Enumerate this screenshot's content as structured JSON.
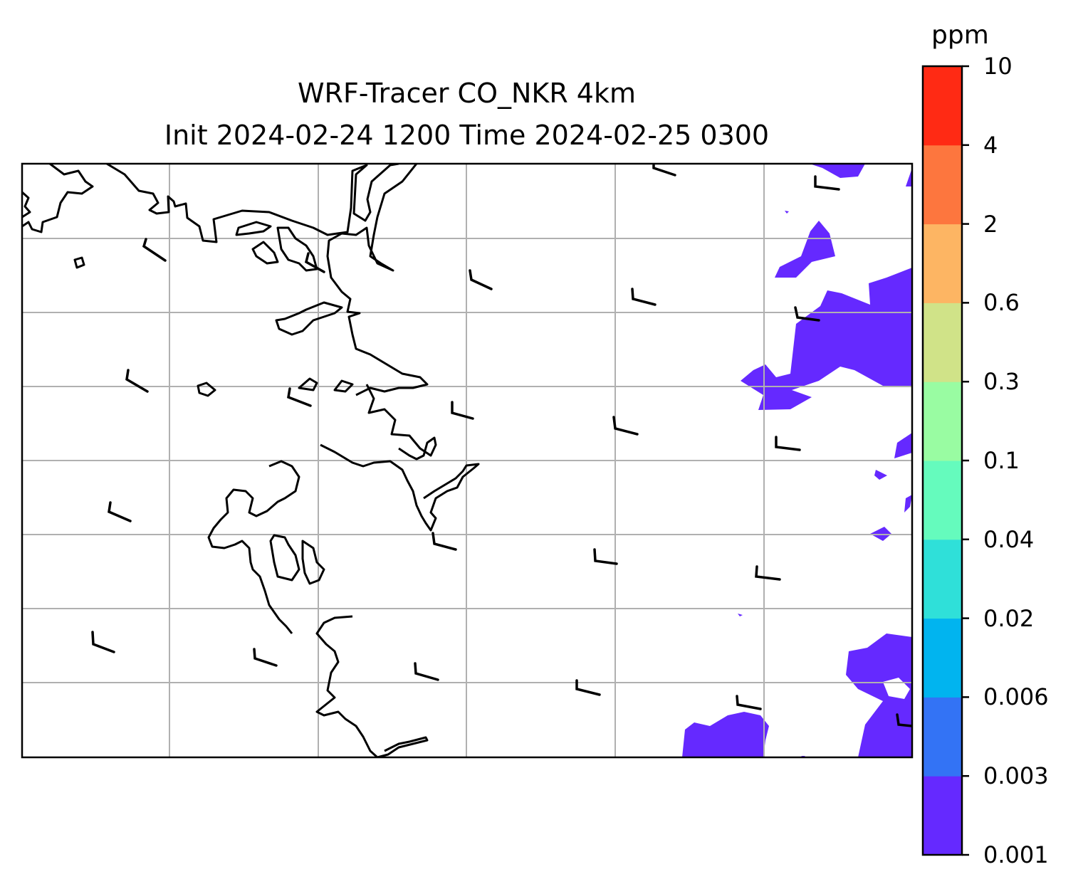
{
  "title": {
    "line1": "WRF-Tracer CO_NKR 4km",
    "line2": "Init 2024-02-24 1200 Time 2024-02-25 0300"
  },
  "colorbar": {
    "unit": "ppm",
    "ticks": [
      "0.001",
      "0.003",
      "0.006",
      "0.02",
      "0.04",
      "0.1",
      "0.3",
      "0.6",
      "2",
      "4",
      "10"
    ],
    "colors": [
      "#6529ff",
      "#3373f5",
      "#01b4ef",
      "#2fe0d9",
      "#65fbbd",
      "#99fca2",
      "#d0e388",
      "#fdb563",
      "#fd763e",
      "#ff2a14"
    ]
  },
  "map": {
    "gridlines": true,
    "coastline_color": "#000000",
    "tracer_level_shown": "0.001-0.003"
  }
}
